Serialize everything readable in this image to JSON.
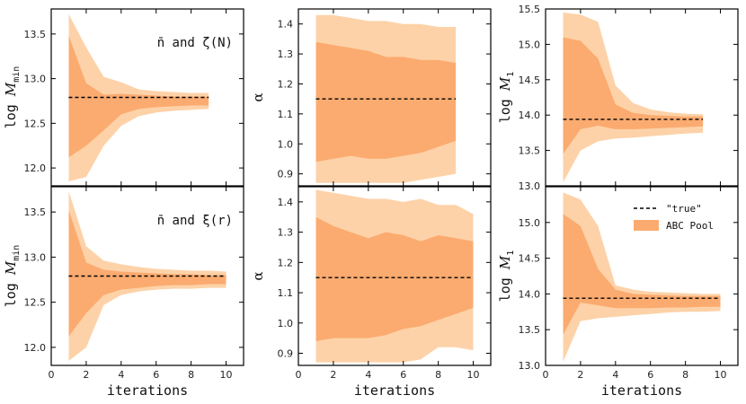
{
  "chart_data": [
    {
      "type": "area",
      "panel": "top-left",
      "annotation": "n̄ and ζ(N)",
      "ylabel_main": "log ",
      "ylabel_script": "M",
      "ylabel_sub": "min",
      "xlabel": "",
      "xlim": [
        0,
        11
      ],
      "ylim": [
        11.8,
        13.78
      ],
      "yticks": [
        12.0,
        12.5,
        13.0,
        13.5
      ],
      "ytick_labels": [
        "12.0",
        "12.5",
        "13.0",
        "13.5"
      ],
      "xticks": [],
      "xtick_labels": [],
      "true_value": 12.79,
      "x": [
        1,
        2,
        3,
        4,
        5,
        6,
        7,
        8,
        9
      ],
      "outer_lo": [
        11.85,
        11.9,
        12.25,
        12.47,
        12.58,
        12.62,
        12.64,
        12.65,
        12.66
      ],
      "outer_hi": [
        13.72,
        13.35,
        13.02,
        12.96,
        12.88,
        12.86,
        12.85,
        12.84,
        12.84
      ],
      "inner_lo": [
        12.12,
        12.25,
        12.42,
        12.6,
        12.66,
        12.68,
        12.69,
        12.7,
        12.7
      ],
      "inner_hi": [
        13.48,
        12.95,
        12.82,
        12.83,
        12.82,
        12.81,
        12.8,
        12.8,
        12.8
      ]
    },
    {
      "type": "area",
      "panel": "top-middle",
      "ylabel_main": "α",
      "ylabel_script": "",
      "ylabel_sub": "",
      "xlabel": "",
      "xlim": [
        0,
        11
      ],
      "ylim": [
        0.86,
        1.45
      ],
      "yticks": [
        0.9,
        1.0,
        1.1,
        1.2,
        1.3,
        1.4
      ],
      "ytick_labels": [
        "0.9",
        "1.0",
        "1.1",
        "1.2",
        "1.3",
        "1.4"
      ],
      "xticks": [],
      "xtick_labels": [],
      "true_value": 1.15,
      "x": [
        1,
        2,
        3,
        4,
        5,
        6,
        7,
        8,
        9
      ],
      "outer_lo": [
        0.87,
        0.87,
        0.87,
        0.87,
        0.87,
        0.87,
        0.88,
        0.89,
        0.9
      ],
      "outer_hi": [
        1.43,
        1.43,
        1.42,
        1.41,
        1.41,
        1.4,
        1.4,
        1.39,
        1.39
      ],
      "inner_lo": [
        0.94,
        0.95,
        0.96,
        0.95,
        0.95,
        0.96,
        0.97,
        0.99,
        1.01
      ],
      "inner_hi": [
        1.34,
        1.33,
        1.32,
        1.31,
        1.29,
        1.29,
        1.28,
        1.28,
        1.27
      ]
    },
    {
      "type": "area",
      "panel": "top-right",
      "ylabel_main": "log ",
      "ylabel_script": "M",
      "ylabel_sub": "1",
      "xlabel": "",
      "xlim": [
        0,
        11
      ],
      "ylim": [
        13.0,
        15.5
      ],
      "yticks": [
        13.0,
        13.5,
        14.0,
        14.5,
        15.0,
        15.5
      ],
      "ytick_labels": [
        "13.0",
        "13.5",
        "14.0",
        "14.5",
        "15.0",
        "15.5"
      ],
      "xticks": [],
      "xtick_labels": [],
      "true_value": 13.94,
      "x": [
        1,
        2,
        3,
        4,
        5,
        6,
        7,
        8,
        9
      ],
      "outer_lo": [
        13.05,
        13.5,
        13.63,
        13.67,
        13.68,
        13.7,
        13.72,
        13.74,
        13.75
      ],
      "outer_hi": [
        15.45,
        15.42,
        15.32,
        14.42,
        14.17,
        14.08,
        14.04,
        14.02,
        14.01
      ],
      "inner_lo": [
        13.45,
        13.8,
        13.85,
        13.8,
        13.8,
        13.81,
        13.82,
        13.83,
        13.84
      ],
      "inner_hi": [
        15.1,
        15.05,
        14.8,
        14.15,
        14.03,
        14.0,
        13.99,
        13.98,
        13.98
      ]
    },
    {
      "type": "area",
      "panel": "bottom-left",
      "annotation": "n̄ and ξ(r)",
      "ylabel_main": "log ",
      "ylabel_script": "M",
      "ylabel_sub": "min",
      "xlabel": "iterations",
      "xlim": [
        0,
        11
      ],
      "ylim": [
        11.8,
        13.78
      ],
      "yticks": [
        12.0,
        12.5,
        13.0,
        13.5
      ],
      "ytick_labels": [
        "12.0",
        "12.5",
        "13.0",
        "13.5"
      ],
      "xticks": [
        0,
        2,
        4,
        6,
        8,
        10
      ],
      "xtick_labels": [
        "0",
        "2",
        "4",
        "6",
        "8",
        "10"
      ],
      "true_value": 12.79,
      "x": [
        1,
        2,
        3,
        4,
        5,
        6,
        7,
        8,
        9,
        10
      ],
      "outer_lo": [
        11.85,
        12.0,
        12.47,
        12.58,
        12.62,
        12.64,
        12.65,
        12.65,
        12.66,
        12.66
      ],
      "outer_hi": [
        13.73,
        13.12,
        12.96,
        12.92,
        12.89,
        12.87,
        12.86,
        12.85,
        12.85,
        12.84
      ],
      "inner_lo": [
        12.12,
        12.38,
        12.58,
        12.64,
        12.66,
        12.68,
        12.69,
        12.69,
        12.7,
        12.7
      ],
      "inner_hi": [
        13.52,
        12.94,
        12.86,
        12.84,
        12.83,
        12.82,
        12.81,
        12.81,
        12.8,
        12.8
      ]
    },
    {
      "type": "area",
      "panel": "bottom-middle",
      "ylabel_main": "α",
      "ylabel_script": "",
      "ylabel_sub": "",
      "xlabel": "iterations",
      "xlim": [
        0,
        11
      ],
      "ylim": [
        0.86,
        1.45
      ],
      "yticks": [
        0.9,
        1.0,
        1.1,
        1.2,
        1.3,
        1.4
      ],
      "ytick_labels": [
        "0.9",
        "1.0",
        "1.1",
        "1.2",
        "1.3",
        "1.4"
      ],
      "xticks": [
        0,
        2,
        4,
        6,
        8,
        10
      ],
      "xtick_labels": [
        "0",
        "2",
        "4",
        "6",
        "8",
        "10"
      ],
      "true_value": 1.15,
      "x": [
        1,
        2,
        3,
        4,
        5,
        6,
        7,
        8,
        9,
        10
      ],
      "outer_lo": [
        0.87,
        0.87,
        0.87,
        0.87,
        0.87,
        0.87,
        0.88,
        0.92,
        0.92,
        0.91
      ],
      "outer_hi": [
        1.44,
        1.43,
        1.42,
        1.41,
        1.41,
        1.4,
        1.41,
        1.39,
        1.39,
        1.36
      ],
      "inner_lo": [
        0.94,
        0.95,
        0.95,
        0.95,
        0.96,
        0.98,
        0.99,
        1.01,
        1.03,
        1.05
      ],
      "inner_hi": [
        1.35,
        1.32,
        1.3,
        1.28,
        1.3,
        1.29,
        1.27,
        1.29,
        1.28,
        1.27
      ]
    },
    {
      "type": "area",
      "panel": "bottom-right",
      "ylabel_main": "log ",
      "ylabel_script": "M",
      "ylabel_sub": "1",
      "xlabel": "iterations",
      "xlim": [
        0,
        11
      ],
      "ylim": [
        13.0,
        15.5
      ],
      "yticks": [
        13.0,
        13.5,
        14.0,
        14.5,
        15.0
      ],
      "ytick_labels": [
        "13.0",
        "13.5",
        "14.0",
        "14.5",
        "15.0"
      ],
      "xticks": [
        0,
        2,
        4,
        6,
        8,
        10
      ],
      "xtick_labels": [
        "0",
        "2",
        "4",
        "6",
        "8",
        "10"
      ],
      "true_value": 13.94,
      "legend": {
        "placement": "top-right",
        "true_label": "\"true\"",
        "pool_label": "ABC Pool"
      },
      "x": [
        1,
        2,
        3,
        4,
        5,
        6,
        7,
        8,
        9,
        10
      ],
      "outer_lo": [
        13.05,
        13.62,
        13.66,
        13.68,
        13.7,
        13.72,
        13.74,
        13.75,
        13.75,
        13.76
      ],
      "outer_hi": [
        15.42,
        15.32,
        14.95,
        14.12,
        14.06,
        14.03,
        14.02,
        14.01,
        14.0,
        14.0
      ],
      "inner_lo": [
        13.43,
        13.88,
        13.84,
        13.8,
        13.8,
        13.8,
        13.81,
        13.81,
        13.82,
        13.82
      ],
      "inner_hi": [
        15.12,
        14.95,
        14.35,
        14.06,
        14.0,
        13.99,
        13.98,
        13.97,
        13.97,
        13.97
      ]
    }
  ],
  "colors": {
    "outer_band": "#fdd2a8",
    "inner_band": "#fbab70",
    "true_line": "#000000",
    "axis": "#000000"
  }
}
